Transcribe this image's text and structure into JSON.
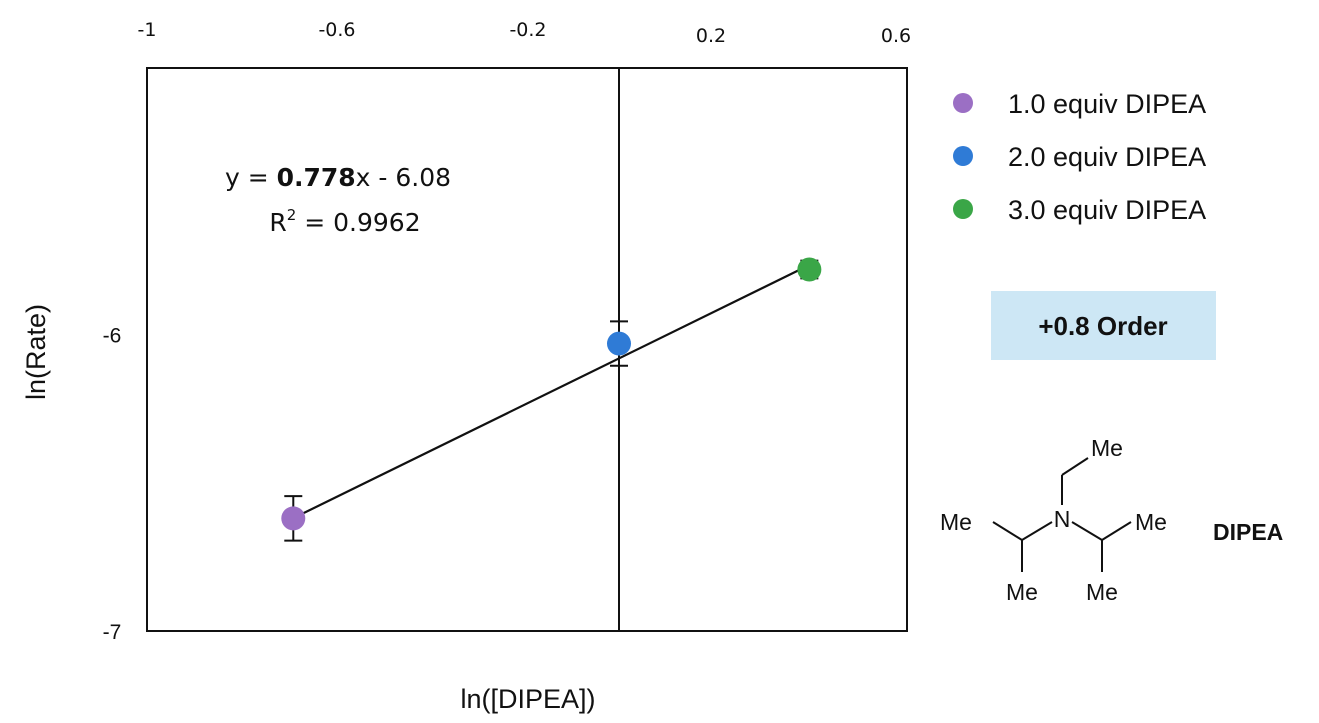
{
  "chart_data": {
    "type": "scatter",
    "xlabel": "ln([DIPEA])",
    "ylabel": "ln(Rate)",
    "xlim": [
      -1,
      0.6
    ],
    "ylim": [
      -7,
      -5.1
    ],
    "x_ticks": [
      "-1",
      "-0.6",
      "-0.2",
      "0.2",
      "0.6"
    ],
    "x_tick_values": [
      -1,
      -0.6,
      -0.2,
      0.2,
      0.6
    ],
    "y_ticks": [
      "-6",
      "-7"
    ],
    "y_tick_values": [
      -6,
      -7
    ],
    "series": [
      {
        "name": "1.0 equiv DIPEA",
        "color": "#9b6fc4",
        "x": [
          -0.693
        ],
        "y": [
          -6.62
        ],
        "err": [
          0.075
        ]
      },
      {
        "name": "2.0 equiv DIPEA",
        "color": "#2f7bd6",
        "x": [
          0.0
        ],
        "y": [
          -6.03
        ],
        "err": [
          0.075
        ]
      },
      {
        "name": "3.0 equiv DIPEA",
        "color": "#3aa647",
        "x": [
          0.405
        ],
        "y": [
          -5.78
        ],
        "err": [
          0.03
        ]
      }
    ],
    "fit": {
      "slope": 0.778,
      "intercept": -6.08
    },
    "equation": {
      "prefix": "y = ",
      "slope_text": "0.778",
      "suffix": "x - 6.08"
    },
    "r2": {
      "prefix": "R",
      "sup": "2",
      "suffix": " = 0.9962"
    },
    "x_zero_line": 0,
    "grid": false,
    "legend_position": "right"
  },
  "order_badge": {
    "text": "+0.8 Order",
    "color": "#cde7f5"
  },
  "molecule": {
    "name": "DIPEA",
    "labels": {
      "top_me": "Me",
      "n": "N",
      "left_me": "Me",
      "right_me": "Me",
      "bottom_left_me": "Me",
      "bottom_right_me": "Me"
    }
  }
}
